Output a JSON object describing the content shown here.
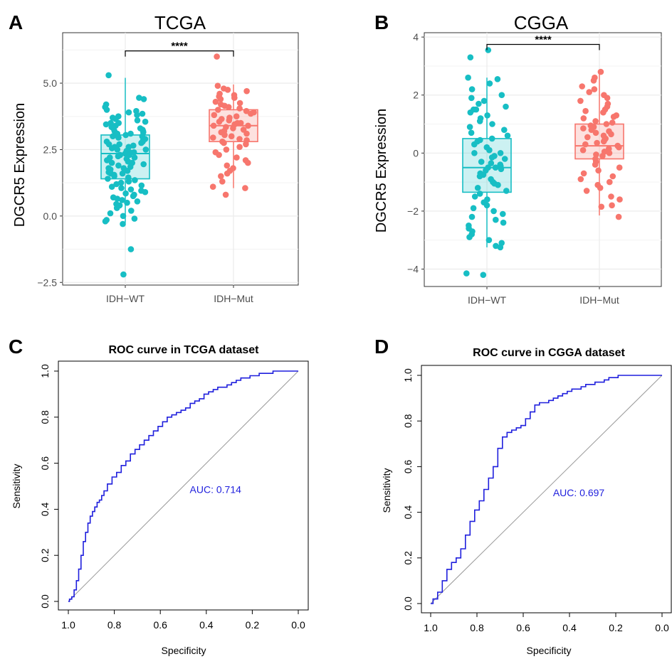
{
  "colors": {
    "wt": "#17bec4",
    "mut": "#f7766d",
    "roc": "#1f1fdd",
    "diag": "#9a9a9a",
    "grid": "#ebebeb"
  },
  "panel_labels": [
    "A",
    "B",
    "C",
    "D"
  ],
  "chart_data": [
    {
      "id": "A",
      "type": "box",
      "title": "TCGA",
      "xlabel": "",
      "ylabel": "DGCR5 Expression",
      "categories": [
        "IDH−WT",
        "IDH−Mut"
      ],
      "ylim": [
        -2.6,
        6.9
      ],
      "yticks": [
        -2.5,
        0.0,
        2.5,
        5.0
      ],
      "ytick_labels": [
        "−2.5",
        "0.0",
        "2.5",
        "5.0"
      ],
      "significance": "****",
      "grid": true,
      "series": [
        {
          "category": "IDH−WT",
          "color": "wt",
          "box": {
            "q1": 1.4,
            "median": 2.35,
            "q3": 3.05,
            "whisker_low": -0.25,
            "whisker_high": 5.2
          },
          "points": [
            5.3,
            4.45,
            4.4,
            4.2,
            4.1,
            4.0,
            3.95,
            3.9,
            3.85,
            3.8,
            3.75,
            3.7,
            3.65,
            3.6,
            3.55,
            3.5,
            3.5,
            3.45,
            3.4,
            3.35,
            3.3,
            3.3,
            3.25,
            3.2,
            3.2,
            3.15,
            3.1,
            3.1,
            3.05,
            3.0,
            3.0,
            2.95,
            2.9,
            2.9,
            2.85,
            2.8,
            2.8,
            2.75,
            2.7,
            2.7,
            2.65,
            2.6,
            2.6,
            2.55,
            2.5,
            2.5,
            2.45,
            2.4,
            2.4,
            2.35,
            2.3,
            2.3,
            2.25,
            2.2,
            2.2,
            2.15,
            2.1,
            2.05,
            2.0,
            2.0,
            1.95,
            1.9,
            1.85,
            1.8,
            1.8,
            1.75,
            1.7,
            1.65,
            1.6,
            1.6,
            1.55,
            1.5,
            1.45,
            1.4,
            1.35,
            1.3,
            1.25,
            1.2,
            1.15,
            1.1,
            1.05,
            1.0,
            0.95,
            0.9,
            0.85,
            0.8,
            0.75,
            0.7,
            0.65,
            0.6,
            0.55,
            0.5,
            0.45,
            0.4,
            0.3,
            0.2,
            0.1,
            0.0,
            -0.1,
            -0.15,
            -0.2,
            -0.3,
            -1.25,
            -2.2
          ]
        },
        {
          "category": "IDH−Mut",
          "color": "mut",
          "box": {
            "q1": 2.8,
            "median": 3.4,
            "q3": 4.0,
            "whisker_low": 1.05,
            "whisker_high": 4.95
          },
          "points": [
            6.0,
            4.9,
            4.8,
            4.75,
            4.7,
            4.6,
            4.55,
            4.5,
            4.45,
            4.4,
            4.3,
            4.25,
            4.2,
            4.15,
            4.1,
            4.05,
            4.0,
            3.95,
            3.9,
            3.85,
            3.8,
            3.75,
            3.7,
            3.65,
            3.6,
            3.55,
            3.5,
            3.5,
            3.45,
            3.4,
            3.4,
            3.35,
            3.3,
            3.25,
            3.2,
            3.15,
            3.1,
            3.05,
            3.0,
            2.95,
            2.9,
            2.85,
            2.8,
            2.75,
            2.7,
            2.6,
            2.5,
            2.4,
            2.3,
            2.2,
            2.1,
            2.0,
            1.9,
            1.8,
            1.7,
            1.6,
            1.5,
            1.3,
            1.1,
            1.05,
            0.8
          ]
        }
      ]
    },
    {
      "id": "B",
      "type": "box",
      "title": "CGGA",
      "xlabel": "",
      "ylabel": "DGCR5 Expression",
      "categories": [
        "IDH−WT",
        "IDH−Mut"
      ],
      "ylim": [
        -4.6,
        4.15
      ],
      "yticks": [
        -4,
        -2,
        0,
        2,
        4
      ],
      "ytick_labels": [
        "−4",
        "−2",
        "0",
        "2",
        "4"
      ],
      "significance": "****",
      "grid": true,
      "series": [
        {
          "category": "IDH−WT",
          "color": "wt",
          "box": {
            "q1": -1.35,
            "median": -0.5,
            "q3": 0.5,
            "whisker_low": -3.25,
            "whisker_high": 2.6
          },
          "points": [
            3.55,
            3.3,
            2.6,
            2.55,
            2.4,
            2.2,
            2.0,
            1.9,
            1.8,
            1.7,
            1.6,
            1.5,
            1.5,
            1.4,
            1.3,
            1.2,
            1.1,
            1.0,
            0.9,
            0.8,
            0.7,
            0.6,
            0.5,
            0.45,
            0.4,
            0.3,
            0.2,
            0.1,
            0.0,
            0.0,
            -0.1,
            -0.15,
            -0.2,
            -0.3,
            -0.35,
            -0.4,
            -0.45,
            -0.5,
            -0.5,
            -0.55,
            -0.6,
            -0.7,
            -0.75,
            -0.8,
            -0.9,
            -1.0,
            -1.05,
            -1.1,
            -1.2,
            -1.3,
            -1.4,
            -1.5,
            -1.6,
            -1.7,
            -1.8,
            -1.9,
            -2.0,
            -2.1,
            -2.2,
            -2.3,
            -2.4,
            -2.5,
            -2.6,
            -2.7,
            -2.8,
            -2.9,
            -3.0,
            -3.1,
            -3.2,
            -3.25,
            -4.15,
            -4.2
          ]
        },
        {
          "category": "IDH−Mut",
          "color": "mut",
          "box": {
            "q1": -0.2,
            "median": 0.25,
            "q3": 1.0,
            "whisker_low": -2.15,
            "whisker_high": 2.8
          },
          "points": [
            2.8,
            2.6,
            2.5,
            2.3,
            2.2,
            2.1,
            2.0,
            1.9,
            1.8,
            1.7,
            1.6,
            1.5,
            1.45,
            1.4,
            1.3,
            1.25,
            1.2,
            1.1,
            1.05,
            1.0,
            0.95,
            0.9,
            0.85,
            0.8,
            0.75,
            0.7,
            0.65,
            0.6,
            0.55,
            0.5,
            0.45,
            0.4,
            0.35,
            0.3,
            0.25,
            0.2,
            0.15,
            0.1,
            0.05,
            0.0,
            -0.05,
            -0.1,
            -0.2,
            -0.3,
            -0.4,
            -0.5,
            -0.6,
            -0.7,
            -0.8,
            -0.9,
            -1.0,
            -1.1,
            -1.2,
            -1.3,
            -1.5,
            -1.6,
            -1.8,
            -1.85,
            -2.2
          ]
        }
      ]
    },
    {
      "id": "C",
      "type": "line",
      "title": "ROC curve in TCGA dataset",
      "xlabel": "Specificity",
      "ylabel": "Sensitivity",
      "xlim": [
        1.0,
        0.0
      ],
      "ylim": [
        0.0,
        1.0
      ],
      "xticks": [
        1.0,
        0.8,
        0.6,
        0.4,
        0.2,
        0.0
      ],
      "xtick_labels": [
        "1.0",
        "0.8",
        "0.6",
        "0.4",
        "0.2",
        "0.0"
      ],
      "yticks": [
        0.0,
        0.2,
        0.4,
        0.6,
        0.8,
        1.0
      ],
      "ytick_labels": [
        "0.0",
        "0.2",
        "0.4",
        "0.6",
        "0.8",
        "1.0"
      ],
      "grid": false,
      "annotation": "AUC: 0.714",
      "series": [
        {
          "name": "",
          "x": [
            1.0,
            0.99,
            0.98,
            0.97,
            0.96,
            0.95,
            0.94,
            0.93,
            0.92,
            0.91,
            0.9,
            0.89,
            0.88,
            0.87,
            0.86,
            0.85,
            0.84,
            0.82,
            0.8,
            0.78,
            0.76,
            0.74,
            0.72,
            0.7,
            0.68,
            0.66,
            0.64,
            0.62,
            0.6,
            0.58,
            0.56,
            0.54,
            0.52,
            0.5,
            0.48,
            0.46,
            0.44,
            0.42,
            0.4,
            0.38,
            0.36,
            0.34,
            0.32,
            0.3,
            0.28,
            0.26,
            0.24,
            0.22,
            0.2,
            0.18,
            0.16,
            0.14,
            0.12,
            0.1,
            0.08,
            0.06,
            0.04,
            0.02,
            0.0
          ],
          "y": [
            0.0,
            0.01,
            0.02,
            0.05,
            0.09,
            0.14,
            0.2,
            0.26,
            0.3,
            0.34,
            0.37,
            0.39,
            0.41,
            0.43,
            0.44,
            0.46,
            0.48,
            0.51,
            0.54,
            0.56,
            0.59,
            0.61,
            0.64,
            0.66,
            0.68,
            0.7,
            0.72,
            0.74,
            0.76,
            0.78,
            0.8,
            0.81,
            0.82,
            0.83,
            0.84,
            0.86,
            0.87,
            0.88,
            0.9,
            0.91,
            0.92,
            0.93,
            0.93,
            0.94,
            0.95,
            0.96,
            0.97,
            0.97,
            0.98,
            0.98,
            0.99,
            0.99,
            0.99,
            1.0,
            1.0,
            1.0,
            1.0,
            1.0,
            1.0
          ]
        }
      ]
    },
    {
      "id": "D",
      "type": "line",
      "title": "ROC curve in CGGA dataset",
      "xlabel": "Specificity",
      "ylabel": "Sensitivity",
      "xlim": [
        1.0,
        0.0
      ],
      "ylim": [
        0.0,
        1.0
      ],
      "xticks": [
        1.0,
        0.8,
        0.6,
        0.4,
        0.2,
        0.0
      ],
      "xtick_labels": [
        "1.0",
        "0.8",
        "0.6",
        "0.4",
        "0.2",
        "0.0"
      ],
      "yticks": [
        0.0,
        0.2,
        0.4,
        0.6,
        0.8,
        1.0
      ],
      "ytick_labels": [
        "0.0",
        "0.2",
        "0.4",
        "0.6",
        "0.8",
        "1.0"
      ],
      "grid": false,
      "annotation": "AUC: 0.697",
      "series": [
        {
          "name": "",
          "x": [
            1.0,
            0.98,
            0.96,
            0.94,
            0.92,
            0.9,
            0.88,
            0.86,
            0.84,
            0.82,
            0.8,
            0.78,
            0.76,
            0.74,
            0.72,
            0.7,
            0.68,
            0.66,
            0.64,
            0.62,
            0.6,
            0.58,
            0.56,
            0.54,
            0.52,
            0.5,
            0.48,
            0.46,
            0.44,
            0.42,
            0.4,
            0.38,
            0.36,
            0.34,
            0.32,
            0.3,
            0.28,
            0.26,
            0.24,
            0.22,
            0.2,
            0.18,
            0.16,
            0.14,
            0.12,
            0.1,
            0.08,
            0.06,
            0.04,
            0.02,
            0.0
          ],
          "y": [
            0.0,
            0.02,
            0.05,
            0.1,
            0.15,
            0.18,
            0.2,
            0.24,
            0.3,
            0.36,
            0.41,
            0.45,
            0.5,
            0.55,
            0.6,
            0.68,
            0.73,
            0.75,
            0.76,
            0.77,
            0.78,
            0.81,
            0.84,
            0.87,
            0.88,
            0.88,
            0.89,
            0.9,
            0.91,
            0.92,
            0.93,
            0.94,
            0.94,
            0.95,
            0.96,
            0.96,
            0.97,
            0.97,
            0.98,
            0.99,
            0.99,
            1.0,
            1.0,
            1.0,
            1.0,
            1.0,
            1.0,
            1.0,
            1.0,
            1.0,
            1.0
          ]
        }
      ]
    }
  ]
}
